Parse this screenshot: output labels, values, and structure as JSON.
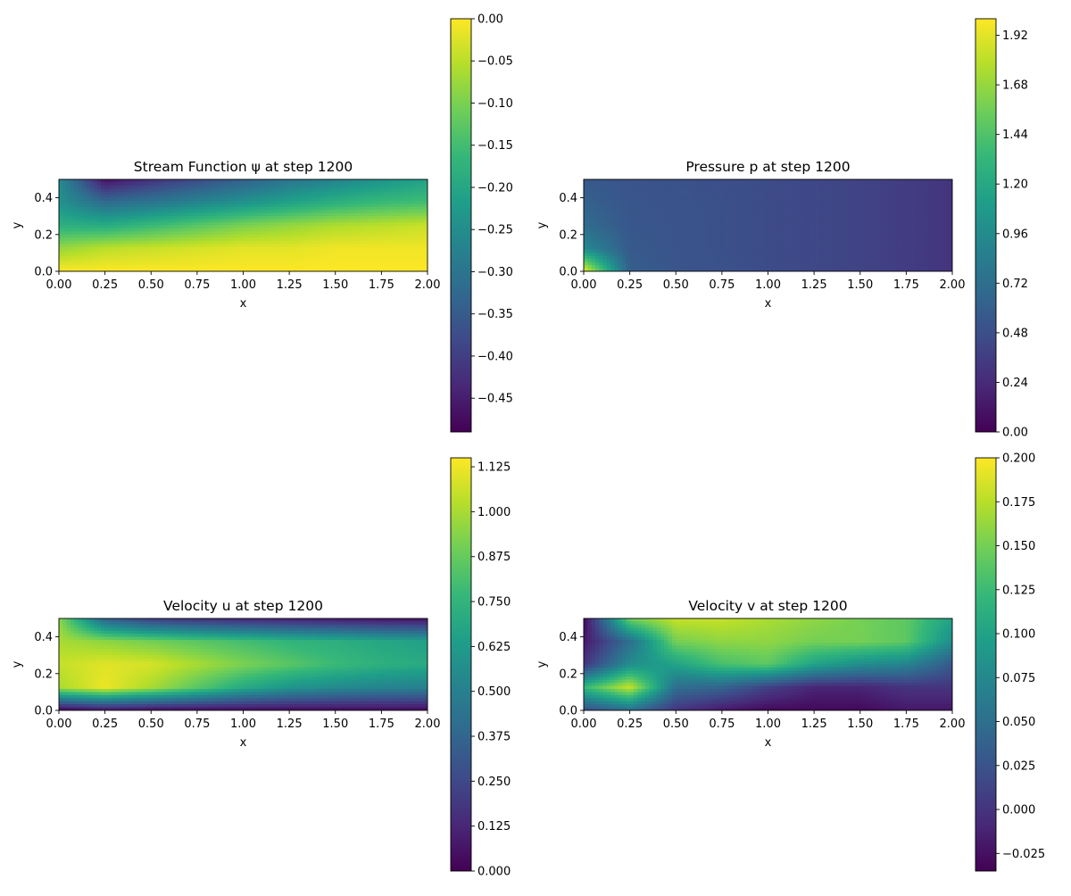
{
  "colors": {
    "viridis": [
      "#440154",
      "#482878",
      "#3e4a89",
      "#31688e",
      "#26828e",
      "#1f9e89",
      "#35b779",
      "#6ece58",
      "#b5de2b",
      "#fde725"
    ]
  },
  "chart_data": [
    {
      "type": "heatmap",
      "title": "Stream Function ψ at step 1200",
      "xlabel": "x",
      "ylabel": "y",
      "xlim": [
        0,
        2
      ],
      "ylim": [
        0,
        0.5
      ],
      "xticks": [
        "0.00",
        "0.25",
        "0.50",
        "0.75",
        "1.00",
        "1.25",
        "1.50",
        "1.75",
        "2.00"
      ],
      "yticks": [
        "0.0",
        "0.2",
        "0.4"
      ],
      "colorbar": {
        "min": -0.49,
        "max": 0.0,
        "ticks": [
          0.0,
          -0.05,
          -0.1,
          -0.15,
          -0.2,
          -0.25,
          -0.3,
          -0.35,
          -0.4,
          -0.45
        ],
        "labels": [
          "0.00",
          "−0.05",
          "−0.10",
          "−0.15",
          "−0.20",
          "−0.25",
          "−0.30",
          "−0.35",
          "−0.40",
          "−0.45"
        ]
      },
      "grid_x": [
        0,
        0.25,
        0.5,
        0.75,
        1.0,
        1.25,
        1.5,
        1.75,
        2.0
      ],
      "grid_y": [
        0.5,
        0.375,
        0.25,
        0.125,
        0.0
      ],
      "z": [
        [
          -0.25,
          -0.47,
          -0.42,
          -0.38,
          -0.34,
          -0.3,
          -0.27,
          -0.24,
          -0.21
        ],
        [
          -0.24,
          -0.32,
          -0.3,
          -0.27,
          -0.24,
          -0.21,
          -0.18,
          -0.16,
          -0.15
        ],
        [
          -0.18,
          -0.19,
          -0.16,
          -0.13,
          -0.1,
          -0.08,
          -0.06,
          -0.05,
          -0.04
        ],
        [
          -0.08,
          -0.05,
          -0.04,
          -0.03,
          -0.02,
          -0.02,
          -0.01,
          -0.01,
          -0.01
        ],
        [
          0.0,
          0.0,
          0.0,
          0.0,
          0.0,
          0.0,
          0.0,
          0.0,
          0.0
        ]
      ]
    },
    {
      "type": "heatmap",
      "title": "Pressure p at step 1200",
      "xlabel": "x",
      "ylabel": "y",
      "xlim": [
        0,
        2
      ],
      "ylim": [
        0,
        0.5
      ],
      "xticks": [
        "0.00",
        "0.25",
        "0.50",
        "0.75",
        "1.00",
        "1.25",
        "1.50",
        "1.75",
        "2.00"
      ],
      "yticks": [
        "0.0",
        "0.2",
        "0.4"
      ],
      "colorbar": {
        "min": 0.0,
        "max": 2.0,
        "ticks": [
          0.0,
          0.24,
          0.48,
          0.72,
          0.96,
          1.2,
          1.44,
          1.68,
          1.92
        ],
        "labels": [
          "0.00",
          "0.24",
          "0.48",
          "0.72",
          "0.96",
          "1.20",
          "1.44",
          "1.68",
          "1.92"
        ]
      },
      "grid_x": [
        0,
        0.25,
        0.5,
        0.75,
        1.0,
        1.25,
        1.5,
        1.75,
        2.0
      ],
      "grid_y": [
        0.5,
        0.375,
        0.25,
        0.125,
        0.0
      ],
      "z": [
        [
          0.55,
          0.52,
          0.5,
          0.48,
          0.46,
          0.43,
          0.4,
          0.36,
          0.3
        ],
        [
          0.62,
          0.53,
          0.51,
          0.49,
          0.46,
          0.43,
          0.4,
          0.36,
          0.3
        ],
        [
          0.7,
          0.54,
          0.52,
          0.49,
          0.46,
          0.43,
          0.4,
          0.36,
          0.3
        ],
        [
          0.95,
          0.56,
          0.52,
          0.49,
          0.46,
          0.43,
          0.4,
          0.36,
          0.3
        ],
        [
          1.95,
          0.6,
          0.53,
          0.5,
          0.46,
          0.43,
          0.4,
          0.36,
          0.3
        ]
      ]
    },
    {
      "type": "heatmap",
      "title": "Velocity u at step 1200",
      "xlabel": "x",
      "ylabel": "y",
      "xlim": [
        0,
        2
      ],
      "ylim": [
        0,
        0.5
      ],
      "xticks": [
        "0.00",
        "0.25",
        "0.50",
        "0.75",
        "1.00",
        "1.25",
        "1.50",
        "1.75",
        "2.00"
      ],
      "yticks": [
        "0.0",
        "0.2",
        "0.4"
      ],
      "colorbar": {
        "min": 0.0,
        "max": 1.15,
        "ticks": [
          0.0,
          0.125,
          0.25,
          0.375,
          0.5,
          0.625,
          0.75,
          0.875,
          1.0,
          1.125
        ],
        "labels": [
          "0.000",
          "0.125",
          "0.250",
          "0.375",
          "0.500",
          "0.625",
          "0.750",
          "0.875",
          "1.000",
          "1.125"
        ]
      },
      "grid_x": [
        0,
        0.25,
        0.5,
        0.75,
        1.0,
        1.25,
        1.5,
        1.75,
        2.0
      ],
      "grid_y": [
        0.5,
        0.375,
        0.25,
        0.125,
        0.0
      ],
      "z": [
        [
          0.95,
          0.35,
          0.2,
          0.15,
          0.12,
          0.1,
          0.08,
          0.06,
          0.05
        ],
        [
          1.0,
          0.95,
          0.9,
          0.85,
          0.8,
          0.75,
          0.72,
          0.68,
          0.65
        ],
        [
          1.05,
          1.1,
          1.08,
          1.0,
          0.92,
          0.85,
          0.78,
          0.73,
          0.7
        ],
        [
          1.0,
          1.12,
          1.0,
          0.85,
          0.7,
          0.6,
          0.55,
          0.52,
          0.5
        ],
        [
          0.0,
          0.05,
          0.03,
          0.03,
          0.03,
          0.03,
          0.03,
          0.03,
          0.03
        ]
      ]
    },
    {
      "type": "heatmap",
      "title": "Velocity v at step 1200",
      "xlabel": "x",
      "ylabel": "y",
      "xlim": [
        0,
        2
      ],
      "ylim": [
        0,
        0.5
      ],
      "xticks": [
        "0.00",
        "0.25",
        "0.50",
        "0.75",
        "1.00",
        "1.25",
        "1.50",
        "1.75",
        "2.00"
      ],
      "yticks": [
        "0.0",
        "0.2",
        "0.4"
      ],
      "colorbar": {
        "min": -0.035,
        "max": 0.2,
        "ticks": [
          -0.025,
          0.0,
          0.025,
          0.05,
          0.075,
          0.1,
          0.125,
          0.15,
          0.175,
          0.2
        ],
        "labels": [
          "−0.025",
          "0.000",
          "0.025",
          "0.050",
          "0.075",
          "0.100",
          "0.125",
          "0.150",
          "0.175",
          "0.200"
        ]
      },
      "grid_x": [
        0,
        0.25,
        0.5,
        0.75,
        1.0,
        1.25,
        1.5,
        1.75,
        2.0
      ],
      "grid_y": [
        0.5,
        0.375,
        0.25,
        0.125,
        0.0
      ],
      "z": [
        [
          -0.03,
          0.15,
          0.18,
          0.18,
          0.17,
          0.16,
          0.15,
          0.14,
          0.1
        ],
        [
          -0.02,
          0.05,
          0.15,
          0.16,
          0.16,
          0.15,
          0.15,
          0.14,
          0.08
        ],
        [
          0.0,
          0.08,
          0.1,
          0.13,
          0.14,
          0.1,
          0.08,
          0.07,
          0.03
        ],
        [
          0.12,
          0.18,
          0.05,
          0.04,
          0.01,
          -0.01,
          -0.01,
          0.0,
          0.0
        ],
        [
          0.02,
          0.05,
          0.0,
          -0.02,
          -0.03,
          -0.03,
          -0.03,
          -0.02,
          -0.02
        ]
      ]
    }
  ]
}
